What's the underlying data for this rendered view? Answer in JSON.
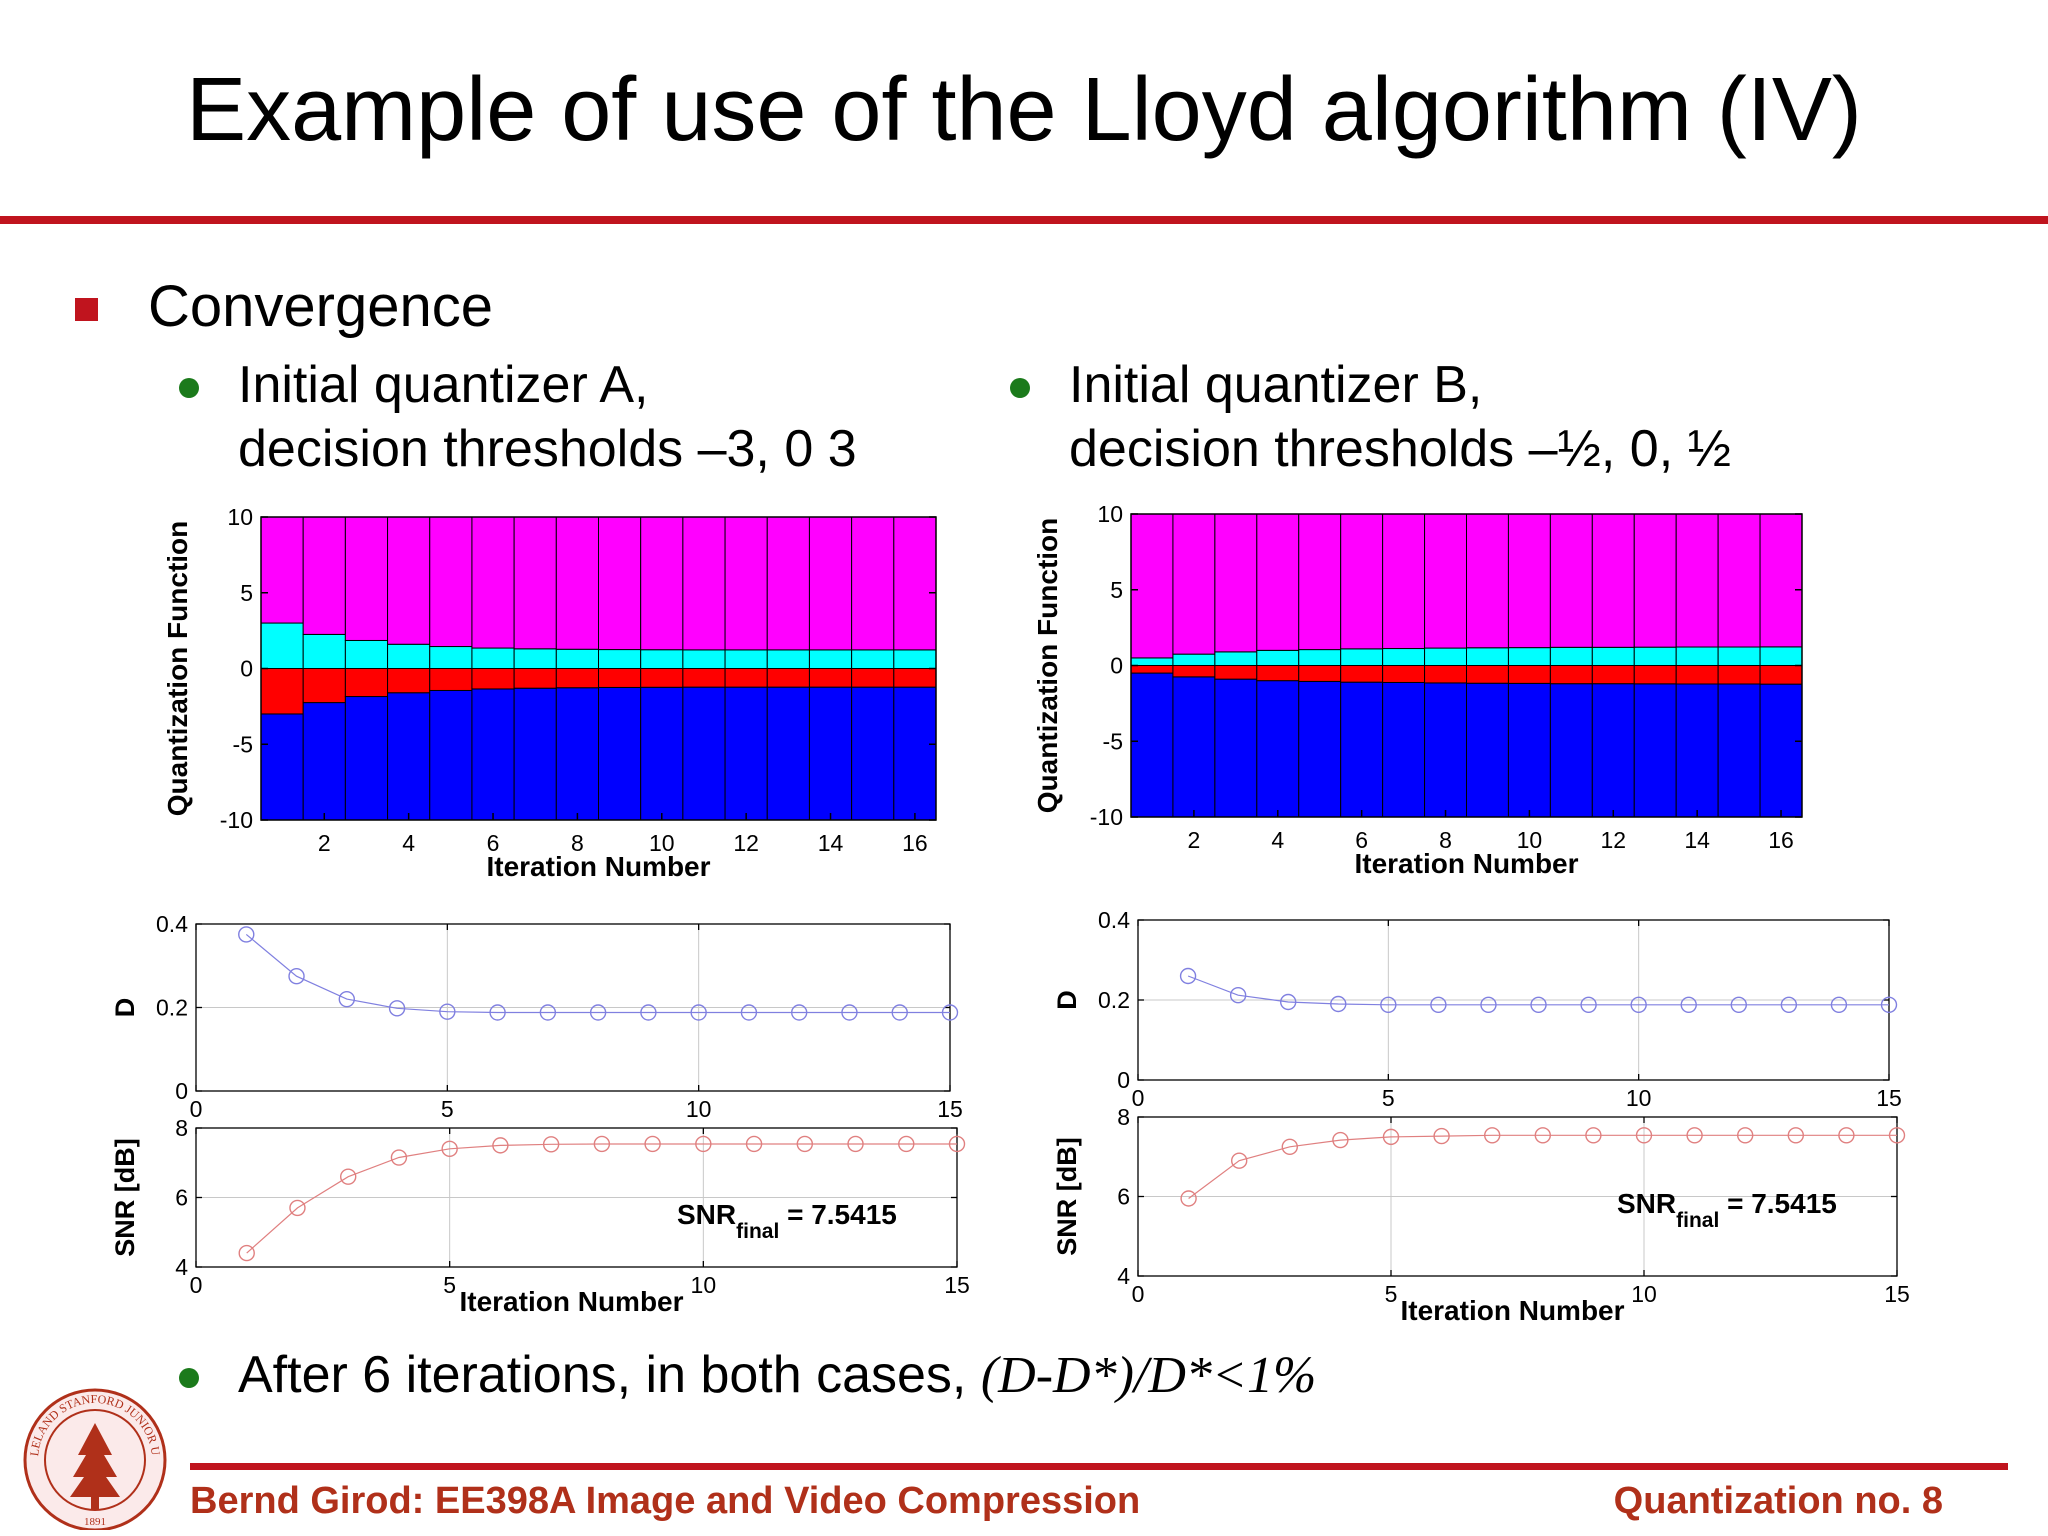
{
  "slide": {
    "title": "Example of use of the Lloyd algorithm (IV)",
    "bullet_main": "Convergence",
    "case_a_line1": "Initial quantizer A,",
    "case_a_line2": "decision thresholds  –3, 0 3",
    "case_b_line1": "Initial quantizer B,",
    "case_b_line2": "decision thresholds –½, 0, ½",
    "bottom_bullet_text": "After 6 iterations, in both cases, ",
    "bottom_bullet_formula": "(D-D*)/D*<1%",
    "footer_left": "Bernd Girod: EE398A Image and Video Compression",
    "footer_right": "Quantization no. 8",
    "seal_text": "LELAND STANFORD JUNIOR UNIVERSITY",
    "seal_year": "1891"
  },
  "colors": {
    "accent_red": "#c0141e",
    "bullet_green": "#1b7a1b",
    "footer_text": "#b0301a",
    "region_magenta": "#ff00ff",
    "region_cyan": "#00ffff",
    "region_red": "#ff0000",
    "region_blue": "#0000ff",
    "d_series": "#8080e0",
    "snr_series": "#e08080"
  },
  "chart_data": [
    {
      "id": "qf_a",
      "type": "area",
      "ylabel": "Quantization Function",
      "xlabel": "Iteration Number",
      "xlim": [
        0.5,
        16.5
      ],
      "ylim": [
        -10,
        10
      ],
      "xticks": [
        2,
        4,
        6,
        8,
        10,
        12,
        14,
        16
      ],
      "yticks": [
        10,
        5,
        0,
        -5,
        -10
      ],
      "iterations": [
        1,
        2,
        3,
        4,
        5,
        6,
        7,
        8,
        9,
        10,
        11,
        12,
        13,
        14,
        15,
        16
      ],
      "threshold_low": [
        -3.0,
        -2.25,
        -1.85,
        -1.6,
        -1.45,
        -1.35,
        -1.3,
        -1.27,
        -1.25,
        -1.24,
        -1.23,
        -1.23,
        -1.23,
        -1.23,
        -1.23,
        -1.23
      ],
      "threshold_mid": [
        0,
        0,
        0,
        0,
        0,
        0,
        0,
        0,
        0,
        0,
        0,
        0,
        0,
        0,
        0,
        0
      ],
      "threshold_high": [
        3.0,
        2.25,
        1.85,
        1.6,
        1.45,
        1.35,
        1.3,
        1.27,
        1.25,
        1.24,
        1.23,
        1.23,
        1.23,
        1.23,
        1.23,
        1.23
      ],
      "regions_bottom_to_top": [
        "blue",
        "red",
        "cyan",
        "magenta"
      ]
    },
    {
      "id": "qf_b",
      "type": "area",
      "ylabel": "Quantization Function",
      "xlabel": "Iteration Number",
      "xlim": [
        0.5,
        16.5
      ],
      "ylim": [
        -10,
        10
      ],
      "xticks": [
        2,
        4,
        6,
        8,
        10,
        12,
        14,
        16
      ],
      "yticks": [
        10,
        5,
        0,
        -5,
        -10
      ],
      "iterations": [
        1,
        2,
        3,
        4,
        5,
        6,
        7,
        8,
        9,
        10,
        11,
        12,
        13,
        14,
        15,
        16
      ],
      "threshold_low": [
        -0.5,
        -0.75,
        -0.9,
        -1.0,
        -1.05,
        -1.1,
        -1.12,
        -1.15,
        -1.17,
        -1.18,
        -1.2,
        -1.2,
        -1.21,
        -1.22,
        -1.22,
        -1.23
      ],
      "threshold_mid": [
        0,
        0,
        0,
        0,
        0,
        0,
        0,
        0,
        0,
        0,
        0,
        0,
        0,
        0,
        0,
        0
      ],
      "threshold_high": [
        0.5,
        0.75,
        0.9,
        1.0,
        1.05,
        1.1,
        1.12,
        1.15,
        1.17,
        1.18,
        1.2,
        1.2,
        1.21,
        1.22,
        1.22,
        1.23
      ],
      "regions_bottom_to_top": [
        "blue",
        "red",
        "cyan",
        "magenta"
      ]
    },
    {
      "id": "d_a",
      "type": "line",
      "ylabel": "D",
      "xlim": [
        0,
        15
      ],
      "ylim": [
        0,
        0.4
      ],
      "xticks": [
        0,
        5,
        10,
        15
      ],
      "yticks": [
        0,
        0.2,
        0.4
      ],
      "grid": true,
      "x": [
        1,
        2,
        3,
        4,
        5,
        6,
        7,
        8,
        9,
        10,
        11,
        12,
        13,
        14,
        15
      ],
      "values": [
        0.375,
        0.275,
        0.22,
        0.198,
        0.19,
        0.188,
        0.188,
        0.188,
        0.188,
        0.188,
        0.188,
        0.188,
        0.188,
        0.188,
        0.188
      ]
    },
    {
      "id": "snr_a",
      "type": "line",
      "ylabel": "SNR [dB]",
      "xlabel": "Iteration Number",
      "xlim": [
        0,
        15
      ],
      "ylim": [
        4,
        8
      ],
      "xticks": [
        0,
        5,
        10,
        15
      ],
      "yticks": [
        4,
        6,
        8
      ],
      "grid": true,
      "annotation_main": "SNR",
      "annotation_sub": "final",
      "annotation_value": " = 7.5415",
      "x": [
        1,
        2,
        3,
        4,
        5,
        6,
        7,
        8,
        9,
        10,
        11,
        12,
        13,
        14,
        15
      ],
      "values": [
        4.4,
        5.7,
        6.6,
        7.15,
        7.4,
        7.5,
        7.53,
        7.54,
        7.54,
        7.54,
        7.54,
        7.54,
        7.54,
        7.54,
        7.54
      ]
    },
    {
      "id": "d_b",
      "type": "line",
      "ylabel": "D",
      "xlim": [
        0,
        15
      ],
      "ylim": [
        0,
        0.4
      ],
      "xticks": [
        0,
        5,
        10,
        15
      ],
      "yticks": [
        0,
        0.2,
        0.4
      ],
      "grid": true,
      "x": [
        1,
        2,
        3,
        4,
        5,
        6,
        7,
        8,
        9,
        10,
        11,
        12,
        13,
        14,
        15
      ],
      "values": [
        0.26,
        0.212,
        0.195,
        0.19,
        0.188,
        0.188,
        0.188,
        0.188,
        0.188,
        0.188,
        0.188,
        0.188,
        0.188,
        0.188,
        0.188
      ]
    },
    {
      "id": "snr_b",
      "type": "line",
      "ylabel": "SNR [dB]",
      "xlabel": "Iteration Number",
      "xlim": [
        0,
        15
      ],
      "ylim": [
        4,
        8
      ],
      "xticks": [
        0,
        5,
        10,
        15
      ],
      "yticks": [
        4,
        6,
        8
      ],
      "grid": true,
      "annotation_main": "SNR",
      "annotation_sub": "final",
      "annotation_value": " = 7.5415",
      "x": [
        1,
        2,
        3,
        4,
        5,
        6,
        7,
        8,
        9,
        10,
        11,
        12,
        13,
        14,
        15
      ],
      "values": [
        5.95,
        6.9,
        7.25,
        7.42,
        7.5,
        7.52,
        7.54,
        7.54,
        7.54,
        7.54,
        7.54,
        7.54,
        7.54,
        7.54,
        7.54
      ]
    }
  ]
}
